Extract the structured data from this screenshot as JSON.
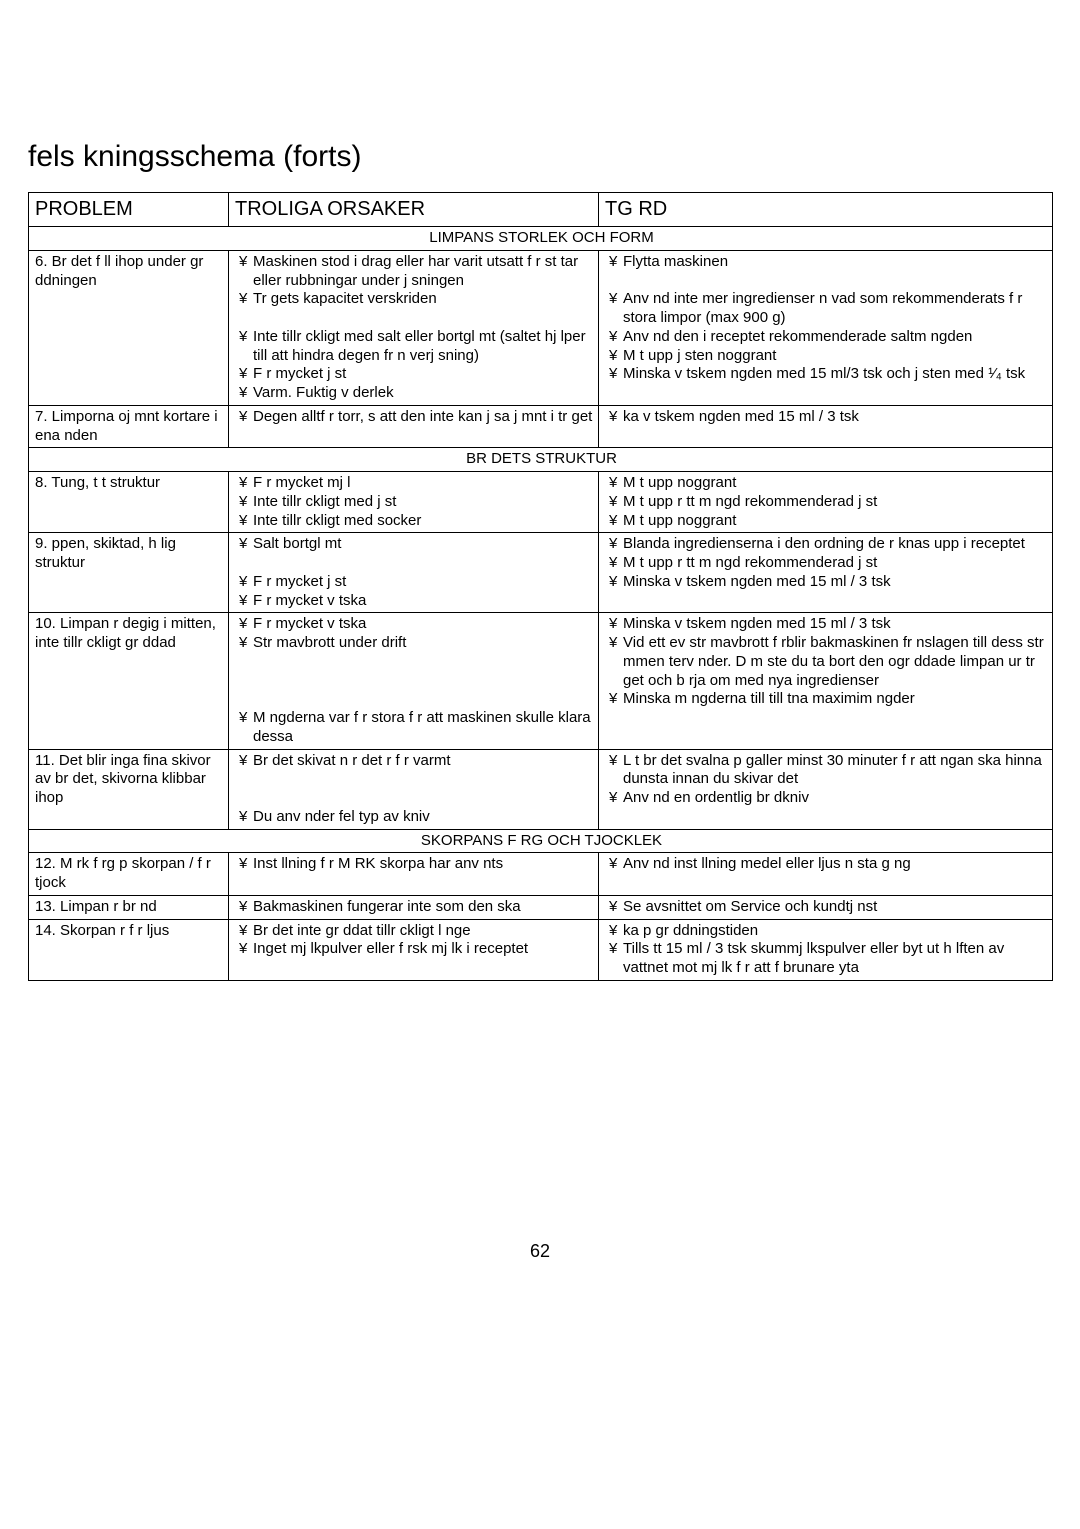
{
  "title": "fels kningsschema (forts)",
  "columns": [
    "PROBLEM",
    "TROLIGA ORSAKER",
    " TG RD"
  ],
  "sections": [
    {
      "heading": "LIMPANS STORLEK OCH FORM",
      "rows": [
        {
          "problem": "6.  Br det f ll ihop under gr ddningen",
          "cause": [
            "Maskinen stod i drag eller har varit utsatt f r st tar eller rubbningar under j sningen",
            "Tr gets kapacitet  verskriden",
            "",
            "Inte tillr ckligt med salt eller bortgl mt (saltet hj lper till att hindra degen fr n  verj sning)",
            "F r mycket j st",
            "Varm. Fuktig v derlek"
          ],
          "action": [
            "Flytta maskinen",
            "",
            "Anv nd inte mer ingredienser  n vad som rekommenderats f r stora limpor (max 900 g)",
            "Anv nd den i receptet rekommenderade saltm ngden",
            "M t upp j sten noggrant",
            "Minska v tskem ngden med 15 ml/3 tsk och j sten med  ¹⁄₄ tsk"
          ]
        },
        {
          "problem": "7.  Limporna oj mnt kortare i ena  nden",
          "cause": [
            "Degen alltf r torr, s  att den inte kan j sa j mnt i tr get"
          ],
          "action": [
            " ka v tskem ngden med 15 ml / 3 tsk"
          ]
        }
      ]
    },
    {
      "heading": "BR DETS STRUKTUR",
      "rows": [
        {
          "problem": "8.  Tung, t t struktur",
          "cause": [
            "F r mycket mj l",
            "Inte tillr ckligt med j st",
            "Inte tillr ckligt med socker"
          ],
          "action": [
            "M t upp noggrant",
            "M t upp r tt m ngd rekommenderad j st",
            "M t upp noggrant"
          ]
        },
        {
          "problem": "9.   ppen, skiktad, h lig struktur",
          "cause": [
            "Salt bortgl mt",
            "",
            "F r mycket j st",
            "F r mycket v tska"
          ],
          "action": [
            "Blanda ingredienserna i den ordning de r knas upp i receptet",
            "M t upp r tt m ngd rekommenderad j st",
            "Minska v tskem ngden med 15 ml / 3 tsk"
          ]
        },
        {
          "problem": "10. Limpan  r degig i mitten, inte tillr ckligt gr ddad",
          "cause": [
            "F r mycket v tska",
            "Str mavbrott under drift",
            "",
            "",
            "",
            "M ngderna var f r stora f r att maskinen skulle klara dessa"
          ],
          "action": [
            "Minska v tskem ngden med 15 ml / 3 tsk",
            "Vid ett ev str mavbrott f rblir bakmaskinen fr nslagen till dess str mmen  terv nder. D  m ste du ta bort den ogr ddade limpan ur tr get och b rja om med nya ingredienser",
            "Minska m ngderna till till tna maximim ngder"
          ]
        },
        {
          "problem": "11. Det blir inga fina skivor av br det, skivorna klibbar ihop",
          "cause": [
            "Br det skivat n r det  r f r varmt",
            "",
            "",
            "Du anv nder fel typ av kniv"
          ],
          "action": [
            "L t br det svalna p  galler minst 30 minuter f r att  ngan ska hinna dunsta innan du skivar det",
            "Anv nd en ordentlig br dkniv"
          ]
        }
      ]
    },
    {
      "heading": "SKORPANS F RG OCH TJOCKLEK",
      "rows": [
        {
          "problem": "12. M rk f rg p  skorpan / f r tjock",
          "cause": [
            "Inst llning f r M RK skorpa har anv nts"
          ],
          "action": [
            "Anv nd inst llning  medel  eller  ljus  n sta g ng"
          ]
        },
        {
          "problem": "13. Limpan  r br nd",
          "cause": [
            "Bakmaskinen fungerar inte som den ska"
          ],
          "action": [
            "Se avsnittet om  Service och kundtj nst"
          ]
        },
        {
          "problem": "14. Skorpan  r f r ljus",
          "cause": [
            "Br det inte gr ddat tillr ckligt l nge",
            "Inget mj lkpulver eller f rsk mj lk i receptet"
          ],
          "action": [
            " ka p  gr ddningstiden",
            "Tills tt 15 ml / 3 tsk skummj lkspulver eller byt ut h lften av vattnet mot mj lk f r att f  brunare yta"
          ]
        }
      ]
    }
  ],
  "pagenum": "62",
  "bullet": "¥"
}
